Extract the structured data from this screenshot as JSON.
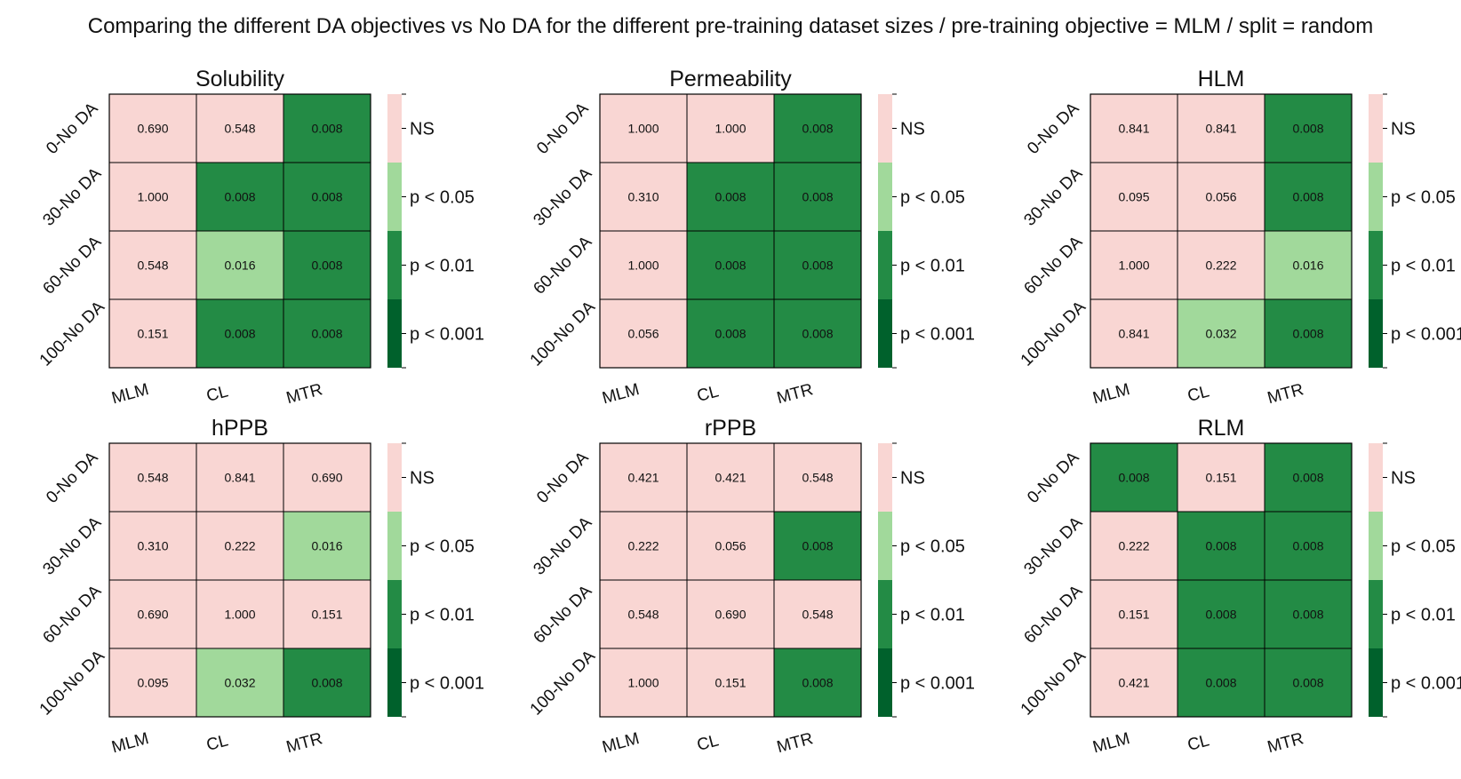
{
  "figure": {
    "title": "Comparing the different DA objectives vs No DA for the different pre-training dataset sizes / pre-training objective = MLM / split = random"
  },
  "colors": {
    "NS": "#f9d6d3",
    "p<0.05": "#a1d99b",
    "p<0.01": "#238b45",
    "p<0.001": "#00612c"
  },
  "legend": [
    "NS",
    "p < 0.05",
    "p < 0.01",
    "p < 0.001"
  ],
  "chart_data": [
    {
      "type": "heatmap",
      "title": "Solubility",
      "x_categories": [
        "MLM",
        "CL",
        "MTR"
      ],
      "y_categories": [
        "0-No DA",
        "30-No DA",
        "60-No DA",
        "100-No DA"
      ],
      "values": [
        [
          "0.690",
          "0.548",
          "0.008"
        ],
        [
          "1.000",
          "0.008",
          "0.008"
        ],
        [
          "0.548",
          "0.016",
          "0.008"
        ],
        [
          "0.151",
          "0.008",
          "0.008"
        ]
      ]
    },
    {
      "type": "heatmap",
      "title": "Permeability",
      "x_categories": [
        "MLM",
        "CL",
        "MTR"
      ],
      "y_categories": [
        "0-No DA",
        "30-No DA",
        "60-No DA",
        "100-No DA"
      ],
      "values": [
        [
          "1.000",
          "1.000",
          "0.008"
        ],
        [
          "0.310",
          "0.008",
          "0.008"
        ],
        [
          "1.000",
          "0.008",
          "0.008"
        ],
        [
          "0.056",
          "0.008",
          "0.008"
        ]
      ]
    },
    {
      "type": "heatmap",
      "title": "HLM",
      "x_categories": [
        "MLM",
        "CL",
        "MTR"
      ],
      "y_categories": [
        "0-No DA",
        "30-No DA",
        "60-No DA",
        "100-No DA"
      ],
      "values": [
        [
          "0.841",
          "0.841",
          "0.008"
        ],
        [
          "0.095",
          "0.056",
          "0.008"
        ],
        [
          "1.000",
          "0.222",
          "0.016"
        ],
        [
          "0.841",
          "0.032",
          "0.008"
        ]
      ]
    },
    {
      "type": "heatmap",
      "title": "hPPB",
      "x_categories": [
        "MLM",
        "CL",
        "MTR"
      ],
      "y_categories": [
        "0-No DA",
        "30-No DA",
        "60-No DA",
        "100-No DA"
      ],
      "values": [
        [
          "0.548",
          "0.841",
          "0.690"
        ],
        [
          "0.310",
          "0.222",
          "0.016"
        ],
        [
          "0.690",
          "1.000",
          "0.151"
        ],
        [
          "0.095",
          "0.032",
          "0.008"
        ]
      ]
    },
    {
      "type": "heatmap",
      "title": "rPPB",
      "x_categories": [
        "MLM",
        "CL",
        "MTR"
      ],
      "y_categories": [
        "0-No DA",
        "30-No DA",
        "60-No DA",
        "100-No DA"
      ],
      "values": [
        [
          "0.421",
          "0.421",
          "0.548"
        ],
        [
          "0.222",
          "0.056",
          "0.008"
        ],
        [
          "0.548",
          "0.690",
          "0.548"
        ],
        [
          "1.000",
          "0.151",
          "0.008"
        ]
      ]
    },
    {
      "type": "heatmap",
      "title": "RLM",
      "x_categories": [
        "MLM",
        "CL",
        "MTR"
      ],
      "y_categories": [
        "0-No DA",
        "30-No DA",
        "60-No DA",
        "100-No DA"
      ],
      "values": [
        [
          "0.008",
          "0.151",
          "0.008"
        ],
        [
          "0.222",
          "0.008",
          "0.008"
        ],
        [
          "0.151",
          "0.008",
          "0.008"
        ],
        [
          "0.421",
          "0.008",
          "0.008"
        ]
      ]
    }
  ]
}
